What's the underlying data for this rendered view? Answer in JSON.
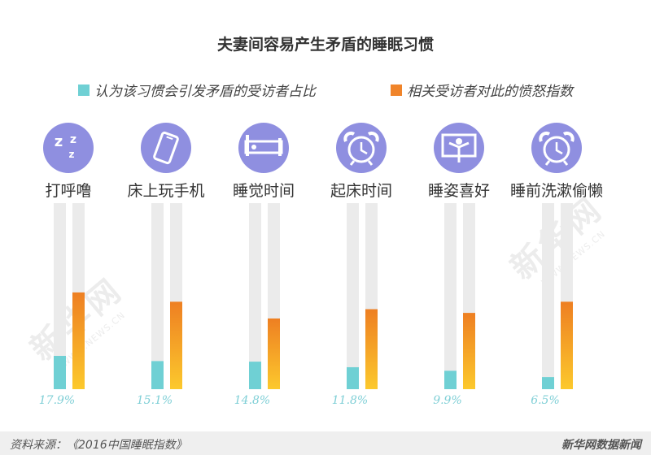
{
  "chart_data": {
    "type": "bar",
    "title": "夫妻间容易产生矛盾的睡眠习惯",
    "categories": [
      "打呼噜",
      "床上玩手机",
      "睡觉时间",
      "起床时间",
      "睡姿喜好",
      "睡前洗漱偷懒"
    ],
    "icons": [
      "zzz-icon",
      "phone-icon",
      "bed-icon",
      "alarm-clock-icon",
      "sleep-posture-icon",
      "alarm-clock-icon"
    ],
    "series": [
      {
        "name": "认为该习惯会引发矛盾的受访者占比",
        "values": [
          17.9,
          15.1,
          14.8,
          11.8,
          9.9,
          6.5
        ],
        "labels": [
          "17.9%",
          "15.1%",
          "14.8%",
          "11.8%",
          "9.9%",
          "6.5%"
        ],
        "color": "#6fd0d4"
      },
      {
        "name": "相关受访者对此的愤怒指数",
        "values": [
          52,
          47,
          38,
          43,
          41,
          47
        ],
        "color": "#f0942a"
      }
    ],
    "ylim": [
      0,
      100
    ],
    "grid": false,
    "legend_position": "top"
  },
  "colors": {
    "icon_circle": "#8f8fe0",
    "track": "#ebebeb",
    "teal": "#6fd0d4",
    "orange_top": "#ee7f22",
    "orange_bottom": "#fcc92d",
    "value_label": "#7fcfd6"
  },
  "footer": {
    "source": "资料来源：《2016中国睡眠指数》",
    "brand": "新华网数据新闻"
  },
  "watermark": {
    "text": "新华网",
    "sub": "WWW.NEWS.CN"
  }
}
